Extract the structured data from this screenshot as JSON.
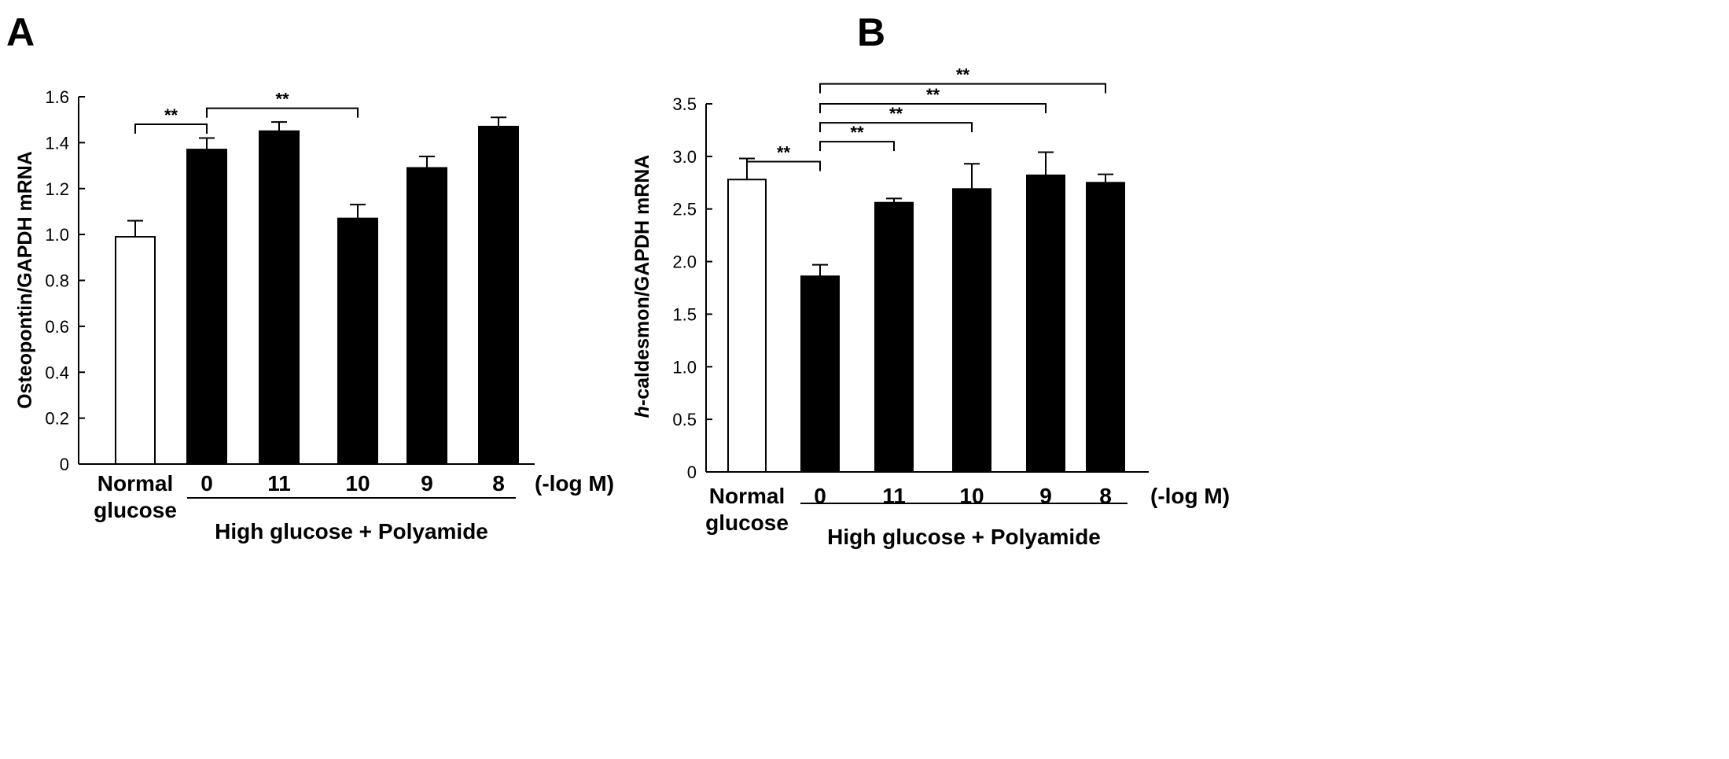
{
  "colors": {
    "bar_control": "#ffffff",
    "bar_treated": "#000000",
    "stroke": "#000000"
  },
  "chart_data": [
    {
      "panel": "A",
      "type": "bar",
      "title": "",
      "xlabel": "",
      "ylabel": "Osteopontin/GAPDH mRNA",
      "ylim": [
        0,
        1.6
      ],
      "yticks": [
        "0",
        "0.2",
        "0.4",
        "0.6",
        "0.8",
        "1.0",
        "1.2",
        "1.4",
        "1.6"
      ],
      "ytick_values": [
        0,
        0.2,
        0.4,
        0.6,
        0.8,
        1.0,
        1.2,
        1.4,
        1.6
      ],
      "categories": [
        "Normal glucose",
        "0",
        "11",
        "10",
        "9",
        "8"
      ],
      "category_lines": [
        [
          "Normal",
          "glucose"
        ],
        [
          "0"
        ],
        [
          "11"
        ],
        [
          "10"
        ],
        [
          "9"
        ],
        [
          "8"
        ]
      ],
      "values": [
        0.99,
        1.37,
        1.45,
        1.07,
        1.29,
        1.47
      ],
      "errors": [
        0.07,
        0.05,
        0.04,
        0.06,
        0.05,
        0.04
      ],
      "fills": [
        "white",
        "black",
        "black",
        "black",
        "black",
        "black"
      ],
      "unit_label": "(-log M)",
      "group_label": "High glucose + Polyamide",
      "significance": [
        {
          "from": 0,
          "to": 1,
          "level": 1.48,
          "label": "**"
        },
        {
          "from": 1,
          "to": 3,
          "level": 1.55,
          "label": "**"
        }
      ]
    },
    {
      "panel": "B",
      "type": "bar",
      "title": "",
      "xlabel": "",
      "ylabel_italic": "h",
      "ylabel": "-caldesmon/GAPDH mRNA",
      "ylim": [
        0,
        3.5
      ],
      "yticks": [
        "0",
        "0.5",
        "1.0",
        "1.5",
        "2.0",
        "2.5",
        "3.0",
        "3.5"
      ],
      "ytick_values": [
        0,
        0.5,
        1.0,
        1.5,
        2.0,
        2.5,
        3.0,
        3.5
      ],
      "categories": [
        "Normal glucose",
        "0",
        "11",
        "10",
        "9",
        "8"
      ],
      "category_lines": [
        [
          "Normal",
          "glucose"
        ],
        [
          "0"
        ],
        [
          "11"
        ],
        [
          "10"
        ],
        [
          "9"
        ],
        [
          "8"
        ]
      ],
      "values": [
        2.78,
        1.86,
        2.56,
        2.69,
        2.82,
        2.75
      ],
      "errors": [
        0.2,
        0.11,
        0.04,
        0.24,
        0.22,
        0.08
      ],
      "fills": [
        "white",
        "black",
        "black",
        "black",
        "black",
        "black"
      ],
      "unit_label": "(-log M)",
      "group_label": "High glucose + Polyamide",
      "significance": [
        {
          "from": 0,
          "to": 1,
          "level": 2.95,
          "label": "**"
        },
        {
          "from": 1,
          "to": 2,
          "level": 3.14,
          "label": "**"
        },
        {
          "from": 1,
          "to": 3,
          "level": 3.32,
          "label": "**"
        },
        {
          "from": 1,
          "to": 4,
          "level": 3.5,
          "label": "**"
        },
        {
          "from": 1,
          "to": 5,
          "level": 3.69,
          "label": "**"
        }
      ]
    }
  ]
}
